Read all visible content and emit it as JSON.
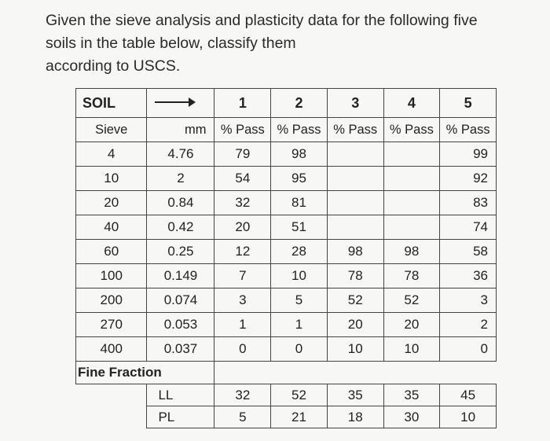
{
  "question": {
    "line1": "Given the sieve analysis and plasticity data for the following five",
    "line2": "soils in the table below, classify them",
    "line3": "according to USCS."
  },
  "table": {
    "soil_label": "SOIL",
    "soil_numbers": [
      "1",
      "2",
      "3",
      "4",
      "5"
    ],
    "sieve_header": "Sieve",
    "mm_header": "mm",
    "pass_header": "% Pass",
    "rows": [
      {
        "sieve": "4",
        "mm": "4.76",
        "values": [
          "79",
          "98",
          "",
          "",
          "99"
        ]
      },
      {
        "sieve": "10",
        "mm": "2",
        "values": [
          "54",
          "95",
          "",
          "",
          "92"
        ]
      },
      {
        "sieve": "20",
        "mm": "0.84",
        "values": [
          "32",
          "81",
          "",
          "",
          "83"
        ]
      },
      {
        "sieve": "40",
        "mm": "0.42",
        "values": [
          "20",
          "51",
          "",
          "",
          "74"
        ]
      },
      {
        "sieve": "60",
        "mm": "0.25",
        "values": [
          "12",
          "28",
          "98",
          "98",
          "58"
        ]
      },
      {
        "sieve": "100",
        "mm": "0.149",
        "values": [
          "7",
          "10",
          "78",
          "78",
          "36"
        ]
      },
      {
        "sieve": "200",
        "mm": "0.074",
        "values": [
          "3",
          "5",
          "52",
          "52",
          "3"
        ]
      },
      {
        "sieve": "270",
        "mm": "0.053",
        "values": [
          "1",
          "1",
          "20",
          "20",
          "2"
        ]
      },
      {
        "sieve": "400",
        "mm": "0.037",
        "values": [
          "0",
          "0",
          "10",
          "10",
          "0"
        ]
      }
    ],
    "fine_fraction_label": "Fine Fraction",
    "ll_label": "LL",
    "pl_label": "PL",
    "ll_values": [
      "32",
      "52",
      "35",
      "35",
      "45"
    ],
    "pl_values": [
      "5",
      "21",
      "18",
      "30",
      "10"
    ]
  }
}
